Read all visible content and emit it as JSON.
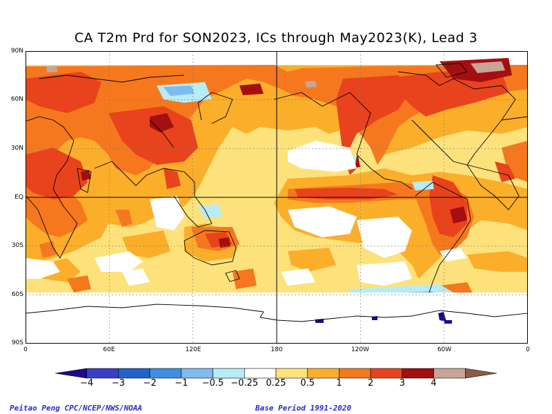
{
  "title": "CA T2m Prd for SON2023, ICs through May2023(K), Lead 3",
  "lat_labels": [
    "90N",
    "60N",
    "30N",
    "EQ",
    "30S",
    "60S",
    "90S"
  ],
  "lon_labels": [
    "0",
    "60E",
    "120E",
    "180",
    "120W",
    "60W",
    "0"
  ],
  "colorbar": {
    "labels": [
      "−4",
      "−3",
      "−2",
      "−1",
      "−0.5",
      "−0.25",
      "0.25",
      "0.5",
      "1",
      "2",
      "3",
      "4"
    ],
    "colors": [
      "#1a0a8c",
      "#3a3fc8",
      "#2163c9",
      "#3f8fe0",
      "#7fbbef",
      "#b6ecf5",
      "#ffffff",
      "#fde27c",
      "#fbae2a",
      "#f5781e",
      "#e8431c",
      "#a40f0f",
      "#c8a499",
      "#8c5a48"
    ]
  },
  "footer_left": "Peitao Peng CPC/NCEP/NWS/NOAA",
  "footer_right": "Base Period 1991-2020",
  "map_colors": {
    "light_yellow": "#fde27c",
    "orange": "#fbae2a",
    "orange_red": "#f5781e",
    "red": "#e8431c",
    "dark_red": "#a40f0f",
    "pink_brown": "#c8a499",
    "light_cyan": "#b6ecf5",
    "light_blue": "#7fbbef",
    "blue": "#3f8fe0",
    "dark_purple": "#1a0a8c"
  }
}
